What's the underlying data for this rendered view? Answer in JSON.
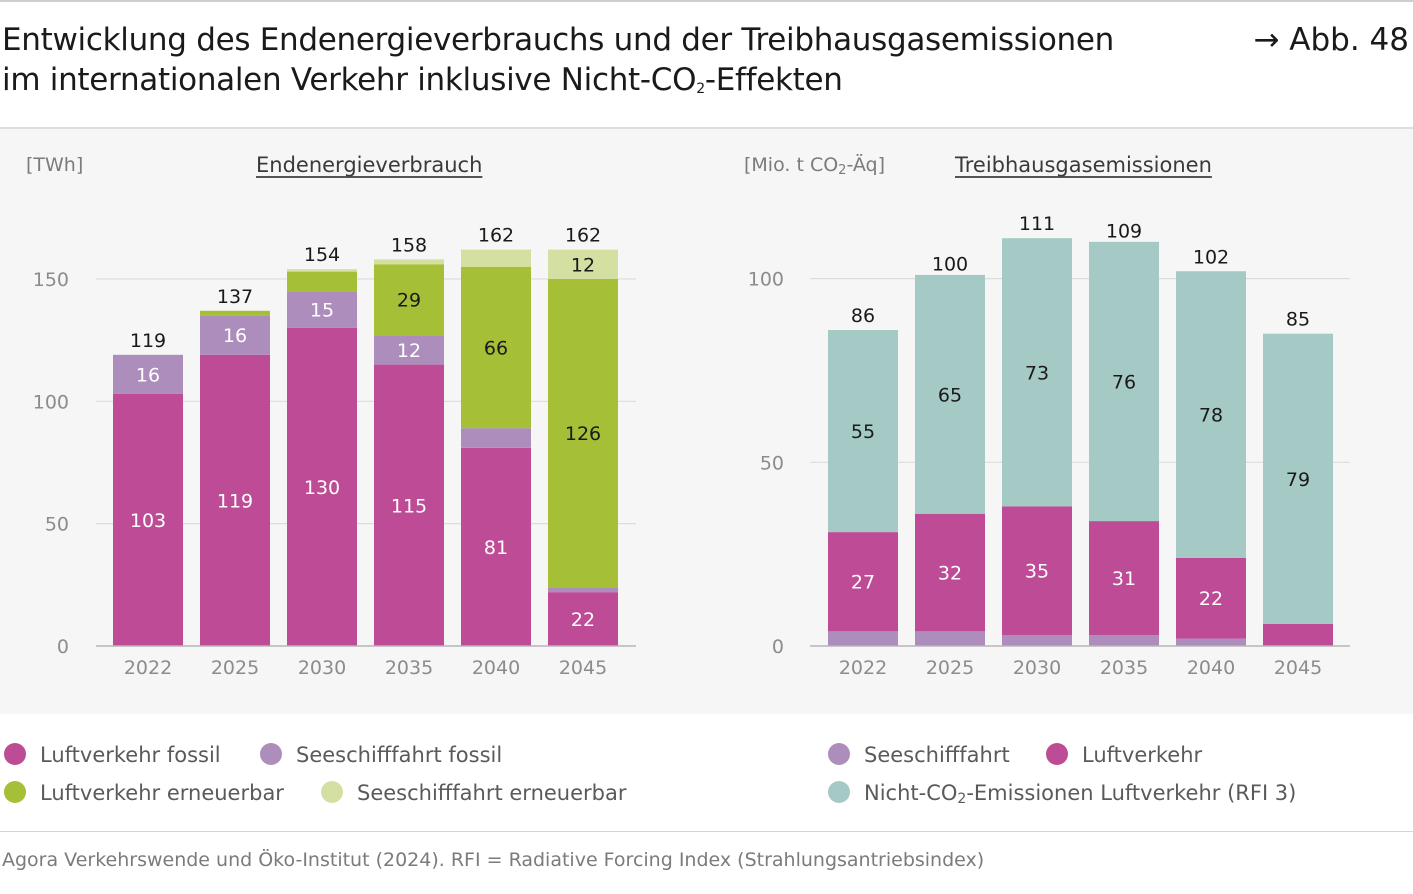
{
  "header": {
    "title_line1": "Entwicklung des Endenergieverbrauchs und der Treibhausgasemissionen",
    "title_line2_pre": "im internationalen Verkehr inklusive Nicht-CO",
    "title_line2_sub": "2",
    "title_line2_post": "-Effekten",
    "figure_ref": "→ Abb. 48"
  },
  "colors": {
    "luftverkehr_fossil": "#be4b96",
    "seeschifffahrt_fossil": "#ad8dbb",
    "luftverkehr_erneuerbar": "#a5bf36",
    "seeschifffahrt_erneuerbar": "#d3e0a2",
    "nicht_co2": "#a5c9c5",
    "gridline": "#dcdcdc",
    "axis": "#b5b5b5",
    "tick_text": "#8c8c8c"
  },
  "chart_data": [
    {
      "type": "bar",
      "stacked": true,
      "title": "Endenergieverbrauch",
      "unit_label": "[TWh]",
      "categories": [
        "2022",
        "2025",
        "2030",
        "2035",
        "2040",
        "2045"
      ],
      "ylim": [
        0,
        165
      ],
      "yticks": [
        0,
        50,
        100,
        150
      ],
      "ytick_labels": [
        "0",
        "50",
        "100",
        "150"
      ],
      "totals": [
        119,
        137,
        154,
        158,
        162,
        162
      ],
      "series": [
        {
          "name": "Luftverkehr fossil",
          "color_key": "luftverkehr_fossil",
          "values": [
            103,
            119,
            130,
            115,
            81,
            22
          ],
          "labels": [
            "103",
            "119",
            "130",
            "115",
            "81",
            "22"
          ],
          "label_color": "#ffffff"
        },
        {
          "name": "Seeschifffahrt fossil",
          "color_key": "seeschifffahrt_fossil",
          "values": [
            16,
            16,
            15,
            12,
            8,
            2
          ],
          "labels": [
            "16",
            "16",
            "15",
            "12",
            "",
            ""
          ],
          "label_color": "#ffffff"
        },
        {
          "name": "Luftverkehr erneuerbar",
          "color_key": "luftverkehr_erneuerbar",
          "values": [
            0,
            2,
            8,
            29,
            66,
            126
          ],
          "labels": [
            "",
            "",
            "",
            "29",
            "66",
            "126"
          ],
          "label_color": "#1a1a1a"
        },
        {
          "name": "Seeschifffahrt erneuerbar",
          "color_key": "seeschifffahrt_erneuerbar",
          "values": [
            0,
            0,
            1,
            2,
            7,
            12
          ],
          "labels": [
            "",
            "",
            "",
            "",
            "",
            "12"
          ],
          "label_color": "#1a1a1a"
        }
      ]
    },
    {
      "type": "bar",
      "stacked": true,
      "title": "Treibhausgasemissionen",
      "unit_label_pre": "[Mio. t CO",
      "unit_label_sub": "2",
      "unit_label_post": "-Äq]",
      "categories": [
        "2022",
        "2025",
        "2030",
        "2035",
        "2040",
        "2045"
      ],
      "ylim": [
        0,
        113
      ],
      "yticks": [
        0,
        50,
        100
      ],
      "ytick_labels": [
        "0",
        "50",
        "100"
      ],
      "totals": [
        86,
        100,
        111,
        109,
        102,
        85
      ],
      "series": [
        {
          "name": "Seeschifffahrt",
          "color_key": "seeschifffahrt_fossil",
          "values": [
            4,
            4,
            3,
            3,
            2,
            0
          ],
          "labels": [
            "",
            "",
            "",
            "",
            "",
            ""
          ],
          "label_color": "#ffffff"
        },
        {
          "name": "Luftverkehr",
          "color_key": "luftverkehr_fossil",
          "values": [
            27,
            32,
            35,
            31,
            22,
            6
          ],
          "labels": [
            "27",
            "32",
            "35",
            "31",
            "22",
            ""
          ],
          "label_color": "#ffffff"
        },
        {
          "name": "Nicht-CO2-Emissionen Luftverkehr (RFI 3)",
          "color_key": "nicht_co2",
          "values": [
            55,
            65,
            73,
            76,
            78,
            79
          ],
          "labels": [
            "55",
            "65",
            "73",
            "76",
            "78",
            "79"
          ],
          "label_color": "#1a1a1a"
        }
      ]
    }
  ],
  "legend_left": [
    {
      "label": "Luftverkehr fossil",
      "color": "#be4b96"
    },
    {
      "label": "Seeschifffahrt fossil",
      "color": "#ad8dbb"
    },
    {
      "label": "Luftverkehr erneuerbar",
      "color": "#a5bf36"
    },
    {
      "label": "Seeschifffahrt erneuerbar",
      "color": "#d3e0a2"
    }
  ],
  "legend_right": [
    {
      "label": "Seeschifffahrt",
      "color": "#ad8dbb"
    },
    {
      "label": "Luftverkehr",
      "color": "#be4b96"
    },
    {
      "label_pre": "Nicht-CO",
      "label_sub": "2",
      "label_post": "-Emissionen Luftverkehr (RFI 3)",
      "color": "#a5c9c5"
    }
  ],
  "source": "Agora Verkehrswende und Öko-Institut (2024). RFI = Radiative Forcing Index (Strahlungsantriebsindex)"
}
